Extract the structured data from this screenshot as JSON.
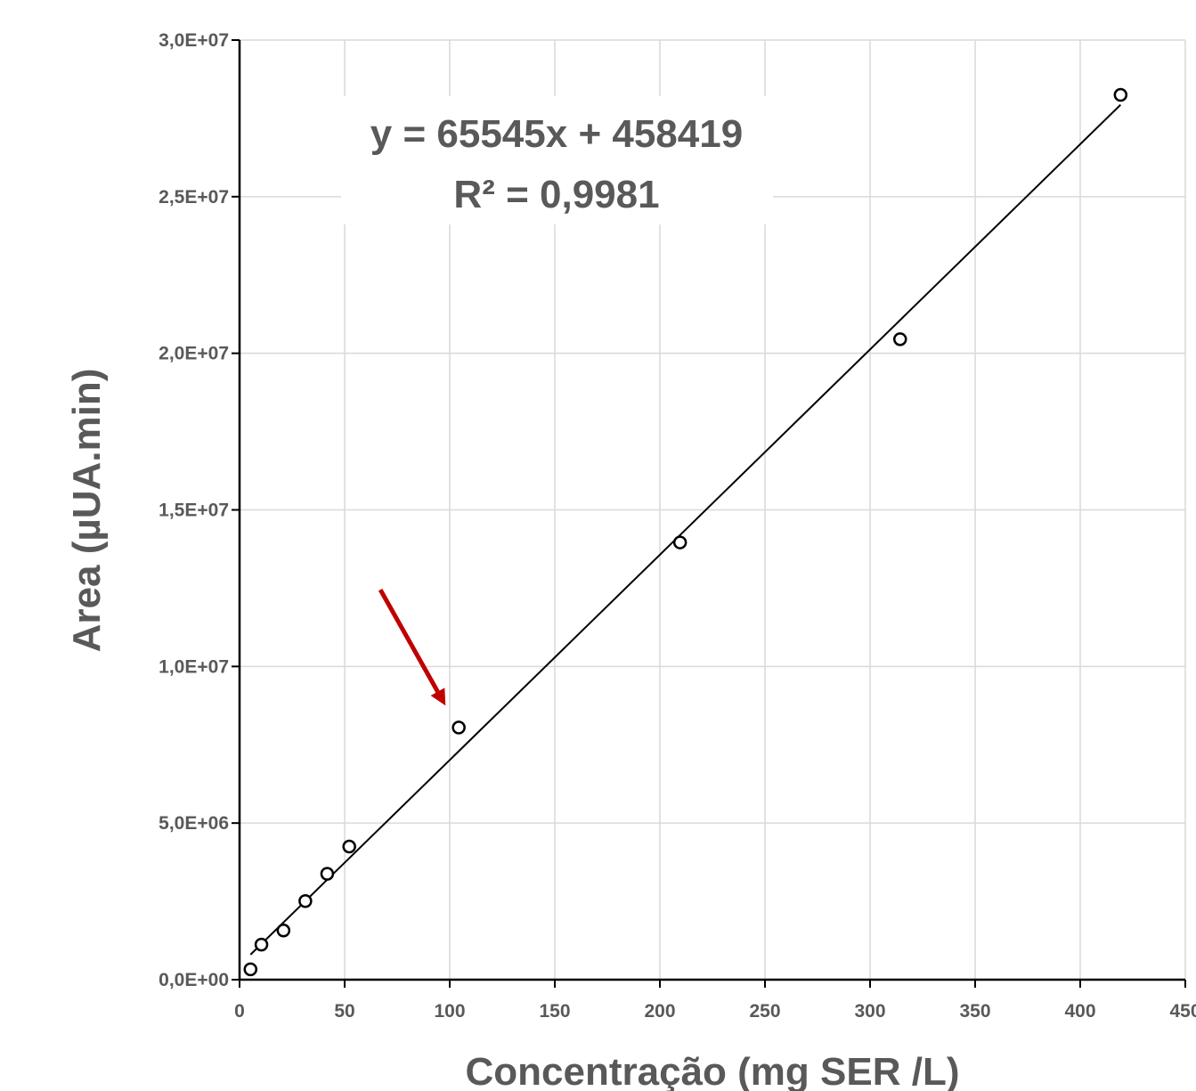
{
  "chart_data": {
    "type": "scatter",
    "xlabel": "Concentração (mg SER /L)",
    "ylabel": "Area (µUA.min)",
    "xlim": [
      0,
      450
    ],
    "ylim": [
      0,
      30000000
    ],
    "x_ticks": [
      "0",
      "50",
      "100",
      "150",
      "200",
      "250",
      "300",
      "350",
      "400",
      "450"
    ],
    "y_ticks": [
      "0,0E+00",
      "5,0E+06",
      "1,0E+07",
      "1,5E+07",
      "2,0E+07",
      "2,5E+07",
      "3,0E+07"
    ],
    "grid": true,
    "series": [
      {
        "marker": "open-circle",
        "x": [
          5.2,
          10.4,
          20.9,
          31.3,
          41.7,
          52.2,
          104.3,
          209.6,
          314.3,
          419.2
        ],
        "y": [
          330000,
          1120000,
          1570000,
          2510000,
          3380000,
          4250000,
          8050000,
          13960000,
          20450000,
          28250000
        ]
      }
    ],
    "trendline": {
      "slope": 65545,
      "intercept": 458419,
      "x_range": [
        5.2,
        419.2
      ],
      "equation_label": "y = 65545x + 458419",
      "r2_label": "R² = 0,9981"
    },
    "annotation": {
      "type": "arrow",
      "color": "#c00000",
      "from": [
        67,
        12450000
      ],
      "to": [
        98,
        8750000
      ]
    }
  }
}
